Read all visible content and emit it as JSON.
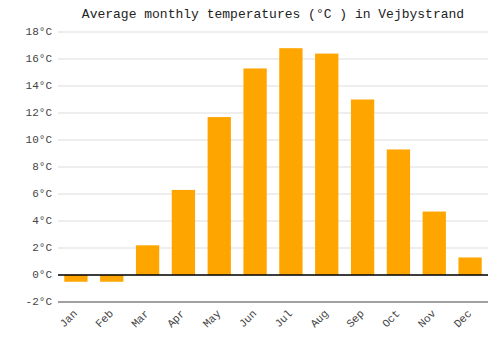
{
  "chart_data": {
    "type": "bar",
    "title": "Average monthly temperatures (°C ) in Vejbystrand",
    "categories": [
      "Jan",
      "Feb",
      "Mar",
      "Apr",
      "May",
      "Jun",
      "Jul",
      "Aug",
      "Sep",
      "Oct",
      "Nov",
      "Dec"
    ],
    "values": [
      -0.5,
      -0.5,
      2.2,
      6.3,
      11.7,
      15.3,
      16.8,
      16.4,
      13.0,
      9.3,
      4.7,
      1.3
    ],
    "color": "#FFA500",
    "ylim": [
      -2,
      18
    ],
    "yticks": [
      {
        "value": -2,
        "label": "-2°C"
      },
      {
        "value": 0,
        "label": "0°C"
      },
      {
        "value": 2,
        "label": "2°C"
      },
      {
        "value": 4,
        "label": "4°C"
      },
      {
        "value": 6,
        "label": "6°C"
      },
      {
        "value": 8,
        "label": "8°C"
      },
      {
        "value": 10,
        "label": "10°C"
      },
      {
        "value": 12,
        "label": "12°C"
      },
      {
        "value": 14,
        "label": "14°C"
      },
      {
        "value": 16,
        "label": "16°C"
      },
      {
        "value": 18,
        "label": "18°C"
      }
    ],
    "grid": true
  }
}
